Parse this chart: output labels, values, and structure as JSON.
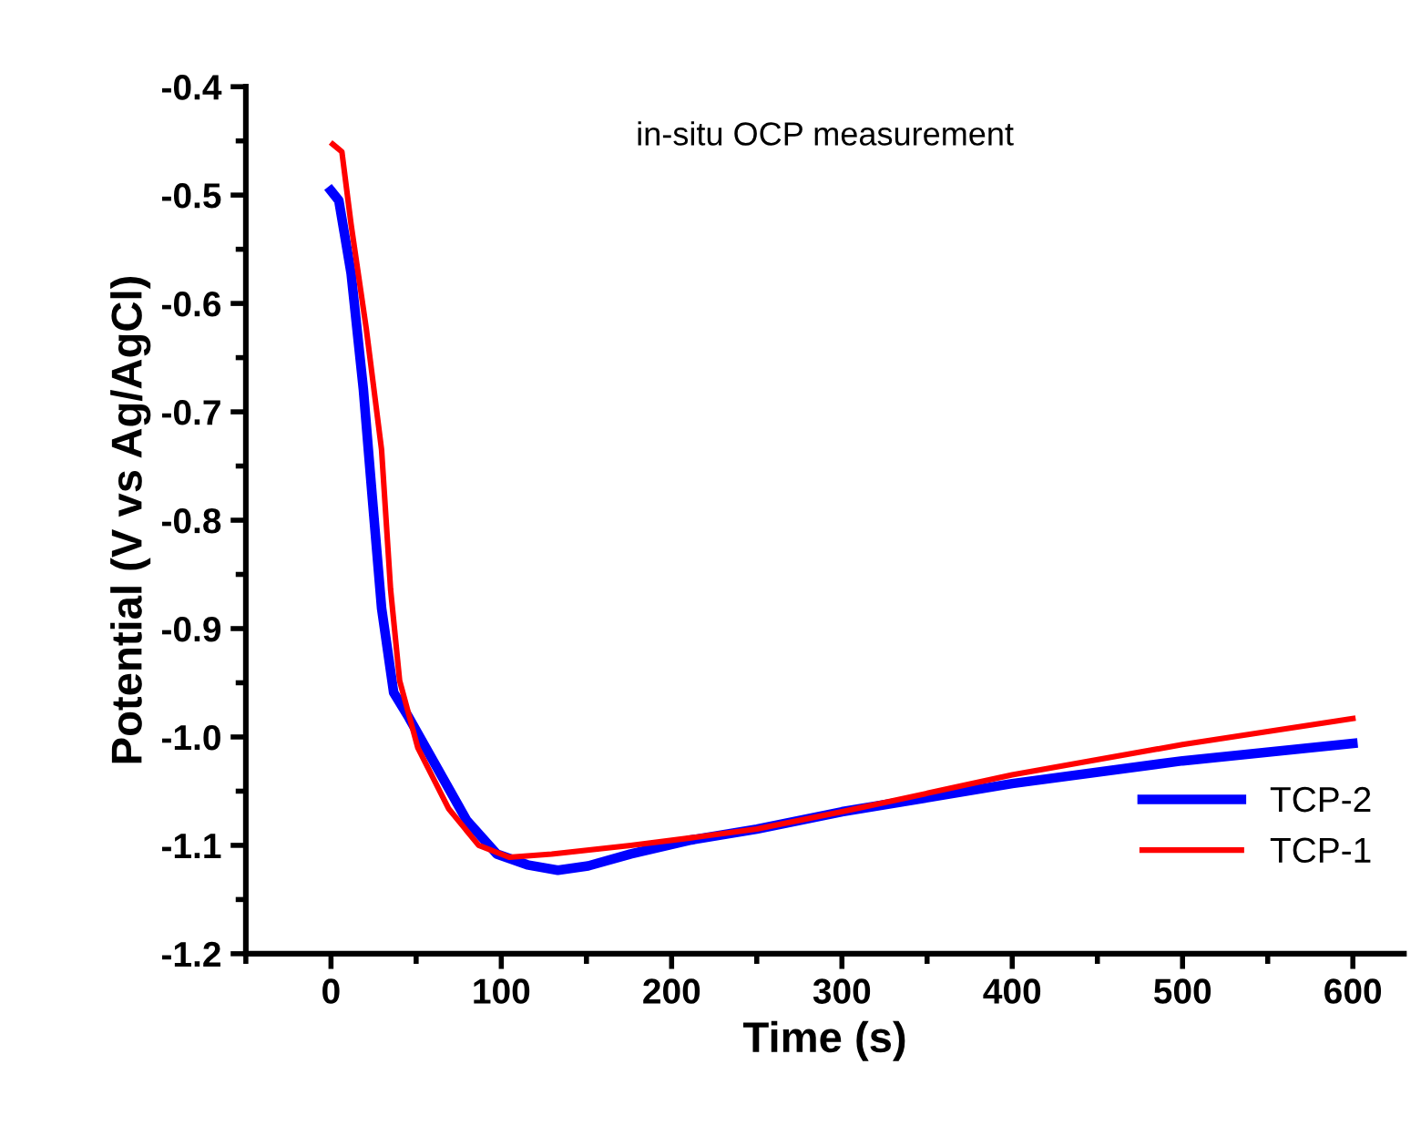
{
  "chart_data": {
    "type": "line",
    "xlabel": "Time (s)",
    "ylabel": "Potential (V vs Ag/AgCl)",
    "annotations": [
      "in-situ OCP measurement"
    ],
    "xlim": [
      -50,
      630
    ],
    "ylim": [
      -1.2,
      -0.4
    ],
    "xticks": [
      0,
      100,
      200,
      300,
      400,
      500,
      600
    ],
    "yticks": [
      -1.2,
      -1.1,
      {
        "value": -1.0,
        "label": "-1.0"
      },
      -0.9,
      -0.8,
      -0.7,
      -0.6,
      -0.5,
      -0.4
    ],
    "grid": false,
    "legend": "bottom right",
    "line_style": "solid",
    "marker": "none",
    "series": [
      {
        "name": "TCP-2",
        "color": "#0000ff",
        "x": [
          0,
          4.6,
          11.8,
          19,
          24.3,
          29.7,
          36.8,
          45.7,
          61.8,
          79.7,
          97.4,
          115.3,
          133.2,
          151,
          176,
          211.7,
          250,
          300,
          400,
          500,
          600
        ],
        "values": [
          -0.496,
          -0.505,
          -0.572,
          -0.679,
          -0.78,
          -0.881,
          -0.959,
          -0.982,
          -1.027,
          -1.077,
          -1.108,
          -1.118,
          -1.123,
          -1.119,
          -1.108,
          -1.095,
          -1.085,
          -1.069,
          -1.043,
          -1.022,
          -1.006
        ]
      },
      {
        "name": "TCP-1",
        "color": "#ff0000",
        "x": [
          1,
          6.4,
          11.8,
          20.7,
          29.7,
          35,
          40.3,
          51,
          69,
          86.7,
          104.6,
          129.6,
          176,
          211.7,
          250,
          300,
          400,
          500,
          600
        ],
        "values": [
          -0.453,
          -0.46,
          -0.527,
          -0.623,
          -0.735,
          -0.864,
          -0.948,
          -1.01,
          -1.066,
          -1.1,
          -1.111,
          -1.108,
          -1.1,
          -1.093,
          -1.085,
          -1.069,
          -1.035,
          -1.007,
          -0.983
        ]
      }
    ]
  }
}
